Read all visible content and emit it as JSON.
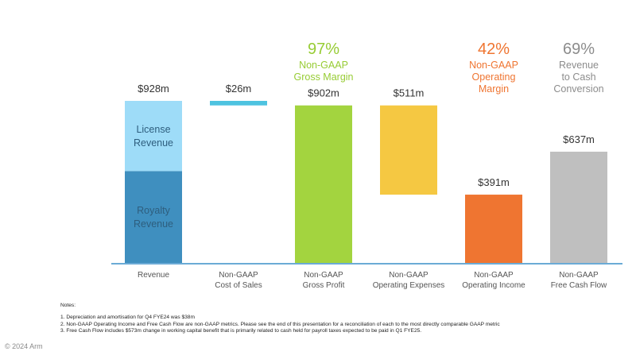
{
  "chart_data": {
    "type": "bar",
    "subtype": "waterfall",
    "unit": "$m",
    "categories": [
      "Revenue",
      "Non-GAAP Cost of Sales",
      "Non-GAAP Gross Profit",
      "Non-GAAP Operating Expenses",
      "Non-GAAP Operating Income",
      "Non-GAAP Free Cash Flow"
    ],
    "category_lines": [
      [
        "Revenue"
      ],
      [
        "Non-GAAP",
        "Cost of Sales"
      ],
      [
        "Non-GAAP",
        "Gross Profit"
      ],
      [
        "Non-GAAP",
        "Operating Expenses"
      ],
      [
        "Non-GAAP",
        "Operating Income"
      ],
      [
        "Non-GAAP",
        "Free Cash Flow"
      ]
    ],
    "bars": [
      {
        "base": 0,
        "value": 928,
        "label": "$928m",
        "color": "#3F8FBF",
        "segments": [
          {
            "name": "Royalty Revenue",
            "lines": [
              "Royalty",
              "Revenue"
            ],
            "from": 0,
            "to": 526,
            "color": "#3F8FBF"
          },
          {
            "name": "License Revenue",
            "lines": [
              "License",
              "Revenue"
            ],
            "from": 526,
            "to": 928,
            "color": "#9EDCF8"
          }
        ]
      },
      {
        "base": 902,
        "value": 26,
        "label": "$26m",
        "color": "#4EC3E0"
      },
      {
        "base": 0,
        "value": 902,
        "label": "$902m",
        "color": "#A3D43F"
      },
      {
        "base": 391,
        "value": 511,
        "label": "$511m",
        "color": "#F5C842"
      },
      {
        "base": 0,
        "value": 391,
        "label": "$391m",
        "color": "#EF7531"
      },
      {
        "base": 0,
        "value": 637,
        "label": "$637m",
        "color": "#BFBFBF"
      }
    ],
    "callouts": [
      {
        "category_index": 2,
        "pct": "97%",
        "lines": [
          "Non-GAAP",
          "Gross Margin"
        ],
        "color": "#97CC34"
      },
      {
        "category_index": 4,
        "pct": "42%",
        "lines": [
          "Non-GAAP",
          "Operating",
          "Margin"
        ],
        "color": "#EF7531"
      },
      {
        "category_index": 5,
        "pct": "69%",
        "lines": [
          "Revenue",
          "to Cash",
          "Conversion"
        ],
        "color": "#8C8C8C"
      }
    ],
    "ylim": [
      0,
      928
    ],
    "grid": false,
    "axis_color": "#3A8FC9"
  },
  "notes": {
    "title": "Notes:",
    "items": [
      "1. Depreciation and amortisation for Q4 FYE24 was $38m",
      "2. Non-GAAP Operating Income and Free Cash Flow are non-GAAP metrics. Please see the end of this presentation for a reconciliation of each to the most directly comparable GAAP metric",
      "3. Free Cash Flow includes $573m change in working capital benefit that is primarily related to cash held for payroll taxes expected to be paid in Q1 FYE25."
    ]
  },
  "copyright": "© 2024 Arm"
}
